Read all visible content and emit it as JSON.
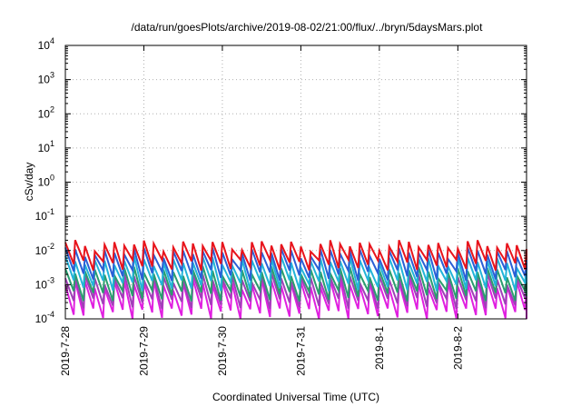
{
  "chart_data": {
    "type": "line",
    "title": "/data/run/goesPlots/archive/2019-08-02/21:00/flux/../bryn/5daysMars.plot",
    "xlabel": "Coordinated Universal Time (UTC)",
    "ylabel": "cSv/day",
    "yscale": "log",
    "ylim": [
      0.0001,
      10000
    ],
    "yticks": [
      {
        "base": "10",
        "exp": "-4"
      },
      {
        "base": "10",
        "exp": "-3"
      },
      {
        "base": "10",
        "exp": "-2"
      },
      {
        "base": "10",
        "exp": "-1"
      },
      {
        "base": "10",
        "exp": "0"
      },
      {
        "base": "10",
        "exp": "1"
      },
      {
        "base": "10",
        "exp": "2"
      },
      {
        "base": "10",
        "exp": "3"
      },
      {
        "base": "10",
        "exp": "4"
      }
    ],
    "xlim": [
      "2019-07-28",
      "2019-08-02 21:00"
    ],
    "xticks": [
      "2019-7-28",
      "2019-7-29",
      "2019-7-30",
      "2019-7-31",
      "2019-8-1",
      "2019-8-2"
    ],
    "grid": true,
    "legend": "none",
    "series_colors": [
      "#e8141c",
      "#2a5fd6",
      "#22b4d8",
      "#2a9d6e",
      "#a040b8",
      "#e020e0"
    ],
    "sawtooth": {
      "period_days": 0.125,
      "peak_values": [
        0.015,
        0.009,
        0.005,
        0.0025,
        0.0016,
        0.0011
      ],
      "trough_values": [
        0.004,
        0.002,
        0.001,
        0.0005,
        0.0003,
        0.00015
      ]
    }
  }
}
